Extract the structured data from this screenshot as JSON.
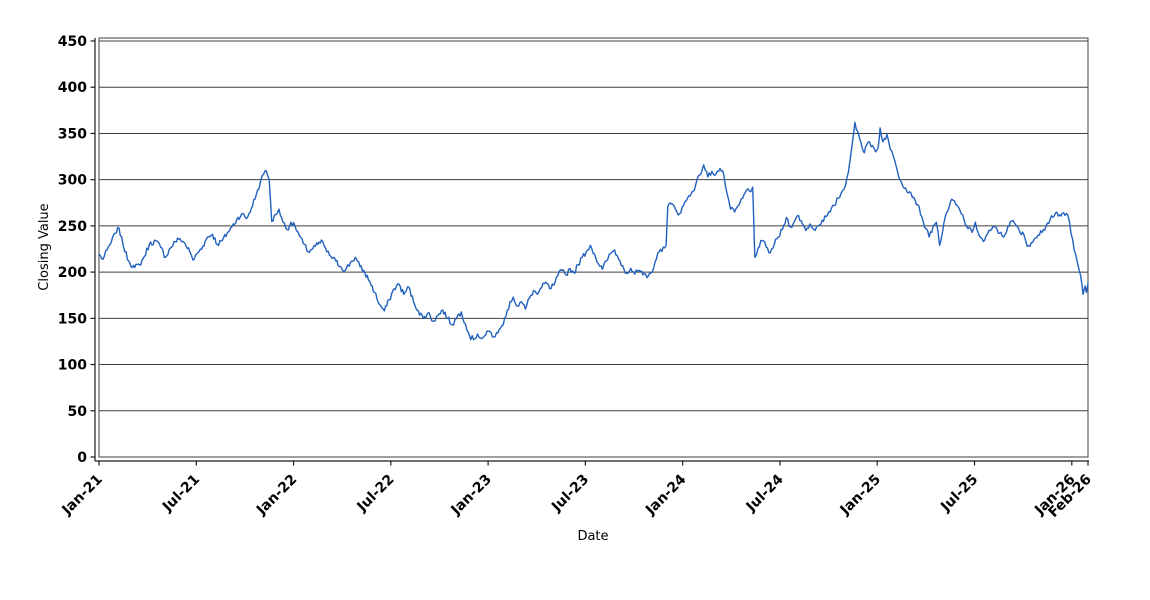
{
  "figure": {
    "background": "#ffffff"
  },
  "chart_data": {
    "type": "line",
    "title": "",
    "xlabel": "Date",
    "ylabel": "Closing Value",
    "legend": "none",
    "grid": "horizontal",
    "ylim": [
      0,
      450
    ],
    "y_ticks": [
      0,
      50,
      100,
      150,
      200,
      250,
      300,
      350,
      400,
      450
    ],
    "x_axis_unit": "months since Jan-2021",
    "x_range_months": [
      0,
      61
    ],
    "x_ticks": [
      {
        "pos": 0,
        "label": "Jan-21"
      },
      {
        "pos": 6,
        "label": "Jul-21"
      },
      {
        "pos": 12,
        "label": "Jan-22"
      },
      {
        "pos": 18,
        "label": "Jul-22"
      },
      {
        "pos": 24,
        "label": "Jan-23"
      },
      {
        "pos": 30,
        "label": "Jul-23"
      },
      {
        "pos": 36,
        "label": "Jan-24"
      },
      {
        "pos": 42,
        "label": "Jul-24"
      },
      {
        "pos": 48,
        "label": "Jan-25"
      },
      {
        "pos": 54,
        "label": "Jul-25"
      },
      {
        "pos": 60,
        "label": "Jan-26"
      },
      {
        "pos": 61,
        "label": "Feb-26"
      }
    ],
    "colors": {
      "series": "#2161be",
      "grid": "#3f3f3f",
      "frame": "#3f3f3f",
      "axis": "#1a1a1a",
      "text": "#000000"
    },
    "noise": {
      "amplitude": 3.0,
      "substep_months": 0.085,
      "seed": 7
    },
    "series": [
      {
        "name": "Closing Value",
        "color": "#2161be",
        "points": [
          [
            0,
            219
          ],
          [
            0.25,
            214
          ],
          [
            0.5,
            224
          ],
          [
            0.75,
            232
          ],
          [
            1.0,
            242
          ],
          [
            1.15,
            248
          ],
          [
            1.4,
            238
          ],
          [
            1.6,
            222
          ],
          [
            1.9,
            210
          ],
          [
            2.2,
            205
          ],
          [
            2.5,
            208
          ],
          [
            2.8,
            217
          ],
          [
            3.1,
            230
          ],
          [
            3.5,
            234
          ],
          [
            3.8,
            227
          ],
          [
            4.1,
            216
          ],
          [
            4.4,
            226
          ],
          [
            4.7,
            233
          ],
          [
            5.0,
            236
          ],
          [
            5.3,
            231
          ],
          [
            5.6,
            222
          ],
          [
            5.8,
            213
          ],
          [
            6.1,
            221
          ],
          [
            6.4,
            228
          ],
          [
            6.7,
            238
          ],
          [
            7.0,
            241
          ],
          [
            7.3,
            230
          ],
          [
            7.6,
            234
          ],
          [
            7.9,
            242
          ],
          [
            8.2,
            249
          ],
          [
            8.5,
            257
          ],
          [
            8.8,
            263
          ],
          [
            9.1,
            258
          ],
          [
            9.4,
            269
          ],
          [
            9.7,
            284
          ],
          [
            9.95,
            297
          ],
          [
            10.15,
            306
          ],
          [
            10.3,
            310
          ],
          [
            10.5,
            300
          ],
          [
            10.65,
            255
          ],
          [
            10.9,
            262
          ],
          [
            11.1,
            268
          ],
          [
            11.35,
            254
          ],
          [
            11.6,
            246
          ],
          [
            11.85,
            254
          ],
          [
            12.1,
            249
          ],
          [
            12.35,
            240
          ],
          [
            12.6,
            231
          ],
          [
            12.9,
            222
          ],
          [
            13.2,
            226
          ],
          [
            13.5,
            230
          ],
          [
            13.8,
            233
          ],
          [
            14.05,
            222
          ],
          [
            14.3,
            217
          ],
          [
            14.6,
            212
          ],
          [
            14.9,
            206
          ],
          [
            15.2,
            202
          ],
          [
            15.5,
            210
          ],
          [
            15.8,
            216
          ],
          [
            16.1,
            206
          ],
          [
            16.4,
            199
          ],
          [
            16.7,
            190
          ],
          [
            17.0,
            178
          ],
          [
            17.3,
            165
          ],
          [
            17.6,
            158
          ],
          [
            17.9,
            170
          ],
          [
            18.2,
            182
          ],
          [
            18.5,
            187
          ],
          [
            18.8,
            176
          ],
          [
            19.1,
            184
          ],
          [
            19.4,
            168
          ],
          [
            19.7,
            158
          ],
          [
            20.0,
            150
          ],
          [
            20.3,
            156
          ],
          [
            20.6,
            147
          ],
          [
            20.9,
            153
          ],
          [
            21.2,
            159
          ],
          [
            21.5,
            150
          ],
          [
            21.8,
            143
          ],
          [
            22.1,
            152
          ],
          [
            22.35,
            157
          ],
          [
            22.6,
            144
          ],
          [
            22.85,
            131
          ],
          [
            23.1,
            127
          ],
          [
            23.35,
            133
          ],
          [
            23.6,
            128
          ],
          [
            23.85,
            132
          ],
          [
            24.1,
            136
          ],
          [
            24.35,
            130
          ],
          [
            24.6,
            134
          ],
          [
            24.85,
            142
          ],
          [
            25.1,
            152
          ],
          [
            25.35,
            168
          ],
          [
            25.55,
            173
          ],
          [
            25.8,
            163
          ],
          [
            26.05,
            168
          ],
          [
            26.3,
            160
          ],
          [
            26.55,
            172
          ],
          [
            26.8,
            180
          ],
          [
            27.05,
            176
          ],
          [
            27.3,
            183
          ],
          [
            27.55,
            189
          ],
          [
            27.8,
            182
          ],
          [
            28.05,
            186
          ],
          [
            28.3,
            196
          ],
          [
            28.55,
            202
          ],
          [
            28.8,
            197
          ],
          [
            29.05,
            204
          ],
          [
            29.3,
            199
          ],
          [
            29.55,
            208
          ],
          [
            29.8,
            216
          ],
          [
            30.05,
            222
          ],
          [
            30.3,
            229
          ],
          [
            30.55,
            220
          ],
          [
            30.8,
            209
          ],
          [
            31.05,
            203
          ],
          [
            31.3,
            212
          ],
          [
            31.55,
            220
          ],
          [
            31.8,
            224
          ],
          [
            32.05,
            214
          ],
          [
            32.3,
            207
          ],
          [
            32.55,
            199
          ],
          [
            32.8,
            204
          ],
          [
            33.05,
            198
          ],
          [
            33.3,
            202
          ],
          [
            33.55,
            197
          ],
          [
            33.8,
            194
          ],
          [
            34.05,
            199
          ],
          [
            34.3,
            211
          ],
          [
            34.55,
            222
          ],
          [
            34.8,
            227
          ],
          [
            34.98,
            229
          ],
          [
            35.08,
            271
          ],
          [
            35.3,
            274
          ],
          [
            35.55,
            268
          ],
          [
            35.8,
            263
          ],
          [
            36.05,
            272
          ],
          [
            36.3,
            280
          ],
          [
            36.55,
            286
          ],
          [
            36.8,
            294
          ],
          [
            37.05,
            305
          ],
          [
            37.3,
            316
          ],
          [
            37.55,
            303
          ],
          [
            37.8,
            309
          ],
          [
            38.05,
            306
          ],
          [
            38.3,
            312
          ],
          [
            38.55,
            304
          ],
          [
            38.75,
            284
          ],
          [
            38.95,
            268
          ],
          [
            39.2,
            265
          ],
          [
            39.45,
            272
          ],
          [
            39.7,
            280
          ],
          [
            39.95,
            289
          ],
          [
            40.2,
            287
          ],
          [
            40.32,
            292
          ],
          [
            40.45,
            216
          ],
          [
            40.65,
            226
          ],
          [
            40.9,
            234
          ],
          [
            41.15,
            227
          ],
          [
            41.4,
            221
          ],
          [
            41.65,
            230
          ],
          [
            41.9,
            238
          ],
          [
            42.15,
            246
          ],
          [
            42.4,
            259
          ],
          [
            42.65,
            249
          ],
          [
            42.9,
            255
          ],
          [
            43.15,
            261
          ],
          [
            43.4,
            252
          ],
          [
            43.6,
            245
          ],
          [
            43.85,
            252
          ],
          [
            44.1,
            246
          ],
          [
            44.35,
            250
          ],
          [
            44.6,
            256
          ],
          [
            44.85,
            260
          ],
          [
            45.1,
            265
          ],
          [
            45.35,
            272
          ],
          [
            45.6,
            280
          ],
          [
            45.85,
            288
          ],
          [
            46.05,
            294
          ],
          [
            46.3,
            318
          ],
          [
            46.5,
            344
          ],
          [
            46.62,
            362
          ],
          [
            46.8,
            352
          ],
          [
            47.0,
            340
          ],
          [
            47.2,
            329
          ],
          [
            47.45,
            341
          ],
          [
            47.7,
            337
          ],
          [
            47.9,
            330
          ],
          [
            48.05,
            334
          ],
          [
            48.18,
            356
          ],
          [
            48.35,
            341
          ],
          [
            48.6,
            349
          ],
          [
            48.8,
            333
          ],
          [
            49.0,
            325
          ],
          [
            49.25,
            309
          ],
          [
            49.5,
            297
          ],
          [
            49.75,
            291
          ],
          [
            50.0,
            287
          ],
          [
            50.25,
            281
          ],
          [
            50.5,
            273
          ],
          [
            50.75,
            260
          ],
          [
            51.0,
            247
          ],
          [
            51.2,
            238
          ],
          [
            51.45,
            250
          ],
          [
            51.65,
            254
          ],
          [
            51.85,
            229
          ],
          [
            52.1,
            252
          ],
          [
            52.35,
            266
          ],
          [
            52.6,
            279
          ],
          [
            52.85,
            273
          ],
          [
            53.1,
            267
          ],
          [
            53.35,
            257
          ],
          [
            53.6,
            247
          ],
          [
            53.85,
            243
          ],
          [
            54.05,
            254
          ],
          [
            54.3,
            239
          ],
          [
            54.55,
            233
          ],
          [
            54.8,
            241
          ],
          [
            55.05,
            246
          ],
          [
            55.3,
            249
          ],
          [
            55.55,
            242
          ],
          [
            55.8,
            238
          ],
          [
            56.05,
            249
          ],
          [
            56.3,
            255
          ],
          [
            56.55,
            251
          ],
          [
            56.8,
            243
          ],
          [
            57.05,
            240
          ],
          [
            57.25,
            228
          ],
          [
            57.5,
            232
          ],
          [
            57.75,
            237
          ],
          [
            58.0,
            240
          ],
          [
            58.25,
            246
          ],
          [
            58.5,
            253
          ],
          [
            58.75,
            261
          ],
          [
            59.0,
            264
          ],
          [
            59.25,
            262
          ],
          [
            59.5,
            264
          ],
          [
            59.75,
            262
          ],
          [
            59.95,
            242
          ],
          [
            60.15,
            224
          ],
          [
            60.35,
            210
          ],
          [
            60.55,
            196
          ],
          [
            60.7,
            176
          ],
          [
            60.82,
            185
          ],
          [
            60.9,
            178
          ],
          [
            61,
            188
          ]
        ]
      }
    ]
  }
}
